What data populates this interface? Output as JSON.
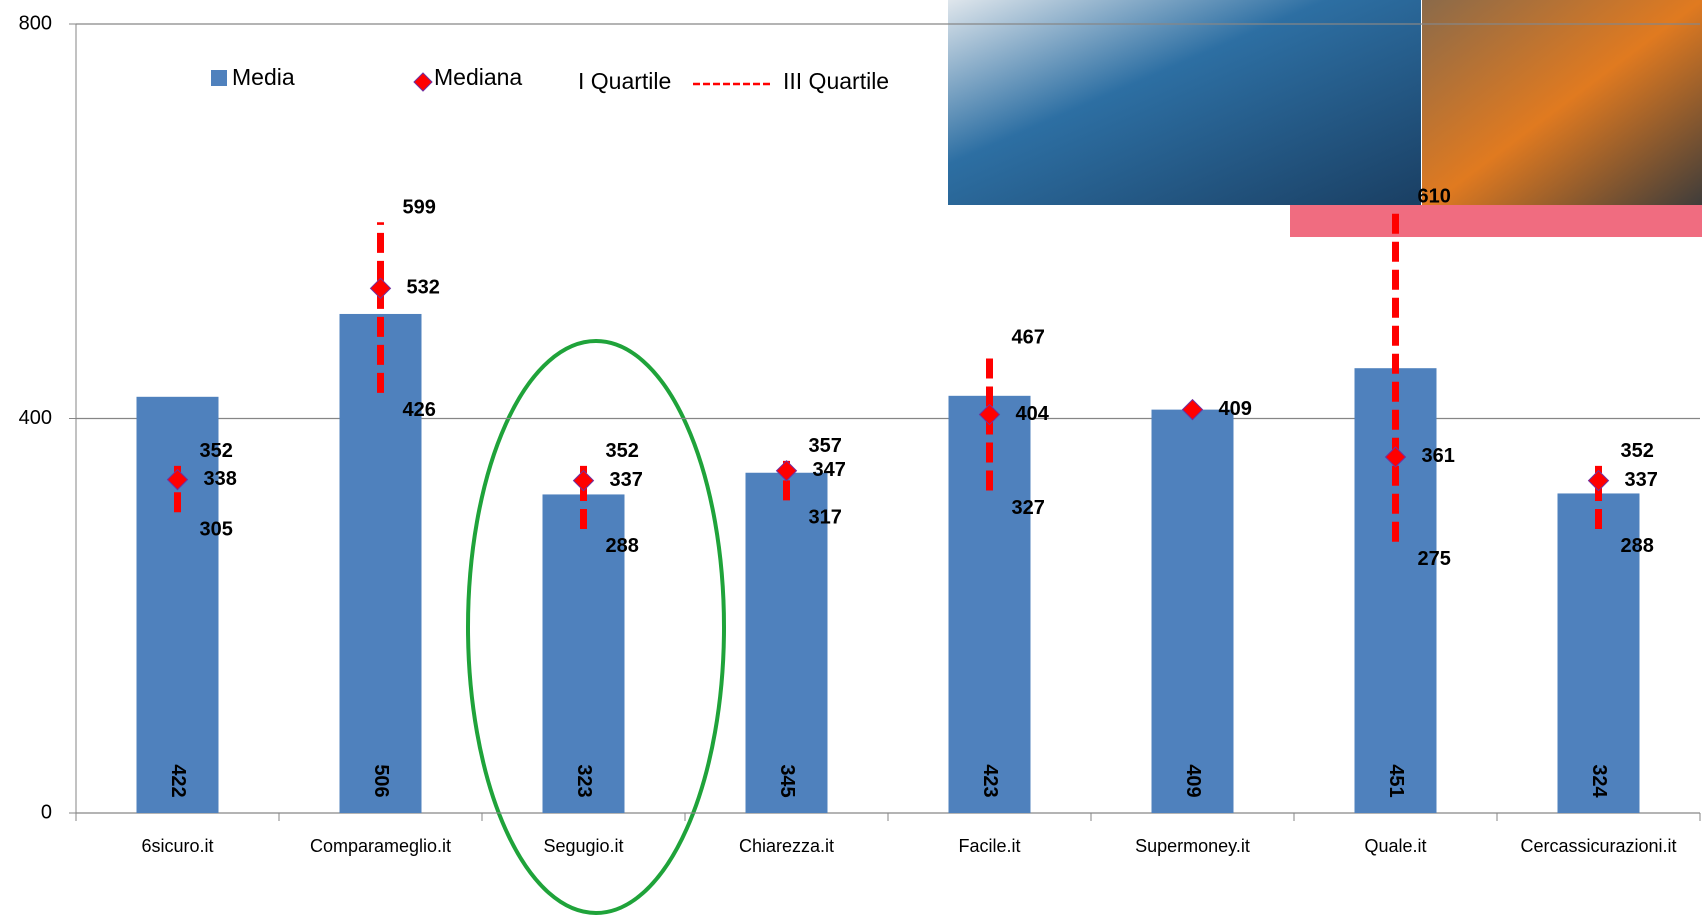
{
  "chart_data": {
    "type": "bar",
    "categories": [
      "6sicuro.it",
      "Comparameglio.it",
      "Segugio.it",
      "Chiarezza.it",
      "Facile.it",
      "Supermoney.it",
      "Quale.it",
      "Cercassicurazioni.it"
    ],
    "series": [
      {
        "name": "Media",
        "color": "#4f81bd",
        "values": [
          422,
          506,
          323,
          345,
          423,
          409,
          451,
          324
        ]
      },
      {
        "name": "Mediana",
        "color": "#ff0000",
        "values": [
          338,
          532,
          337,
          347,
          404,
          409,
          361,
          337
        ]
      },
      {
        "name": "I Quartile",
        "color": "#ff0000",
        "values": [
          305,
          426,
          288,
          317,
          327,
          null,
          275,
          288
        ]
      },
      {
        "name": "III Quartile",
        "color": "#ff0000",
        "values": [
          352,
          599,
          352,
          357,
          467,
          null,
          610,
          352
        ]
      }
    ],
    "ylim": [
      0,
      800
    ],
    "yticks": [
      0,
      400,
      800
    ],
    "grid": true
  }
}
